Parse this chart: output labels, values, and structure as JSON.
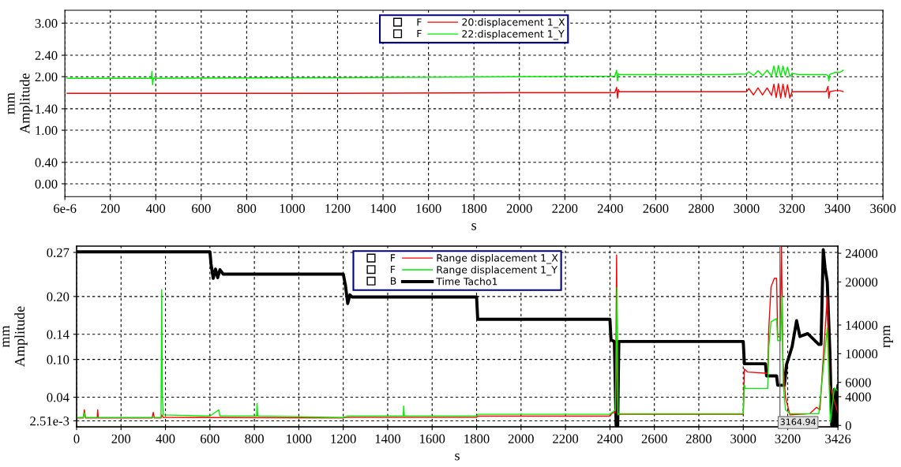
{
  "chart_data": [
    {
      "type": "line",
      "xlabel": "s",
      "ylabel": "mm\nAmplitude",
      "xlim": [
        6e-06,
        3600
      ],
      "ylim": [
        -0.24,
        3.24
      ],
      "xticks": [
        {
          "value": 6e-06,
          "label": "6e-6"
        },
        200,
        400,
        600,
        800,
        1000,
        1200,
        1400,
        1600,
        1800,
        2000,
        2200,
        2400,
        2600,
        2800,
        3000,
        3200,
        3400,
        3600
      ],
      "yticks": [
        {
          "value": 0,
          "label": "0.00"
        },
        {
          "value": 0.4,
          "label": "0.40"
        },
        {
          "value": 1.0,
          "label": "1.00"
        },
        {
          "value": 1.4,
          "label": "1.40"
        },
        {
          "value": 2.0,
          "label": "2.00"
        },
        {
          "value": 2.4,
          "label": "2.40"
        },
        {
          "value": 3.0,
          "label": "3.00"
        }
      ],
      "grid": true,
      "legend": "top",
      "annotations": [
        "F",
        "F"
      ],
      "series": [
        {
          "name": "20:displacement 1_X",
          "color": "#ff0000",
          "x": [
            10,
            380,
            1200,
            2000,
            2420,
            2428,
            2432,
            2436,
            2440,
            2900,
            3000,
            3010,
            3030,
            3050,
            3070,
            3090,
            3110,
            3120,
            3130,
            3140,
            3150,
            3160,
            3170,
            3180,
            3190,
            3200,
            3230,
            3350,
            3358,
            3362,
            3366,
            3390,
            3410,
            3425
          ],
          "values": [
            1.69,
            1.69,
            1.69,
            1.7,
            1.7,
            1.8,
            1.6,
            1.76,
            1.72,
            1.72,
            1.72,
            1.78,
            1.66,
            1.79,
            1.66,
            1.79,
            1.65,
            1.86,
            1.61,
            1.87,
            1.6,
            1.86,
            1.62,
            1.85,
            1.6,
            1.72,
            1.72,
            1.72,
            1.82,
            1.6,
            1.72,
            1.74,
            1.74,
            1.72
          ]
        },
        {
          "name": "22:displacement 1_Y",
          "color": "#00ee00",
          "x": [
            10,
            380,
            383,
            386,
            390,
            1200,
            2000,
            2420,
            2428,
            2432,
            2436,
            2440,
            2900,
            3000,
            3010,
            3030,
            3050,
            3070,
            3090,
            3110,
            3120,
            3130,
            3140,
            3150,
            3160,
            3170,
            3180,
            3190,
            3200,
            3230,
            3350,
            3358,
            3362,
            3366,
            3390,
            3410,
            3425
          ],
          "values": [
            1.97,
            1.97,
            2.1,
            1.85,
            1.97,
            1.98,
            2.0,
            2.01,
            2.12,
            1.92,
            2.06,
            2.04,
            2.04,
            2.05,
            2.09,
            2.02,
            2.11,
            2.02,
            2.12,
            2.01,
            2.2,
            2.0,
            2.21,
            2.0,
            2.2,
            2.02,
            2.18,
            2.0,
            2.06,
            2.04,
            2.04,
            2.02,
            1.92,
            2.04,
            2.08,
            2.08,
            2.12
          ]
        }
      ]
    },
    {
      "type": "line",
      "xlabel": "s",
      "ylabel": "mm\nAmplitude",
      "y2label": "rpm",
      "xlim": [
        0,
        3426
      ],
      "ylim": [
        -0.007,
        0.28
      ],
      "y2lim": [
        -200,
        25000
      ],
      "xticks": [
        0,
        200,
        400,
        600,
        800,
        1000,
        1200,
        1400,
        1600,
        1800,
        2000,
        2200,
        2400,
        2600,
        2800,
        3000,
        3200,
        3426
      ],
      "yticks": [
        {
          "value": 0.00251,
          "label": "2.51e-3"
        },
        0.04,
        {
          "value": 0.1,
          "label": "0.10"
        },
        0.14,
        {
          "value": 0.2,
          "label": "0.20"
        },
        0.27
      ],
      "y2ticks": [
        0,
        4000,
        6000,
        10000,
        14000,
        20000,
        24000
      ],
      "grid": true,
      "legend": "top",
      "annotations": [
        "F",
        "F",
        "B"
      ],
      "ref_lines": [
        {
          "axis": "x",
          "value": 3164.94,
          "label": "3164.94",
          "color": "#707070"
        }
      ],
      "series": [
        {
          "name": "Range displacement 1_X",
          "color": "#ff0000",
          "x": [
            0,
            30,
            35,
            40,
            93,
            95,
            98,
            340,
            345,
            350,
            380,
            383,
            390,
            1200,
            1210,
            1800,
            1805,
            2400,
            2410,
            2425,
            2430,
            2435,
            2440,
            3000,
            3005,
            3020,
            3110,
            3115,
            3125,
            3140,
            3150,
            3155,
            3165,
            3172,
            3178,
            3190,
            3210,
            3300,
            3330,
            3345,
            3378,
            3388,
            3426
          ],
          "values": [
            0.007,
            0.007,
            0.02,
            0.007,
            0.007,
            0.02,
            0.007,
            0.007,
            0.016,
            0.007,
            0.007,
            0.012,
            0.008,
            0.007,
            0.008,
            0.008,
            0.01,
            0.01,
            0.015,
            0.016,
            0.266,
            0.013,
            0.013,
            0.013,
            0.085,
            0.08,
            0.078,
            0.15,
            0.215,
            0.229,
            0.229,
            0.136,
            0.136,
            0.28,
            0.1,
            0.04,
            0.012,
            0.014,
            0.024,
            0.02,
            0.2,
            0.06,
            0.015
          ]
        },
        {
          "name": "Range displacement 1_Y",
          "color": "#00ee00",
          "x": [
            0,
            30,
            35,
            40,
            380,
            383,
            386,
            390,
            600,
            640,
            645,
            810,
            812,
            815,
            1200,
            1220,
            1470,
            1472,
            1475,
            1800,
            1805,
            2400,
            2410,
            2425,
            2432,
            2436,
            2440,
            3000,
            3005,
            3010,
            3110,
            3115,
            3125,
            3150,
            3155,
            3168,
            3175,
            3180,
            3190,
            3210,
            3340,
            3378,
            3392,
            3410,
            3426
          ],
          "values": [
            0.008,
            0.008,
            0.015,
            0.008,
            0.008,
            0.211,
            0.04,
            0.012,
            0.01,
            0.02,
            0.01,
            0.01,
            0.03,
            0.01,
            0.008,
            0.01,
            0.01,
            0.026,
            0.01,
            0.01,
            0.013,
            0.013,
            0.016,
            0.02,
            0.214,
            0.012,
            0.014,
            0.014,
            0.06,
            0.054,
            0.054,
            0.12,
            0.16,
            0.165,
            0.13,
            0.13,
            0.2,
            0.06,
            0.02,
            0.014,
            0.014,
            0.15,
            0.0,
            0.055,
            0.05
          ]
        },
        {
          "name": "Time Tacho1",
          "color": "#000000",
          "axis": "y2",
          "x": [
            0,
            600,
            605,
            615,
            625,
            635,
            645,
            660,
            1200,
            1210,
            1220,
            1230,
            1240,
            1800,
            1805,
            2400,
            2405,
            2420,
            2428,
            2435,
            2440,
            3000,
            3005,
            3100,
            3105,
            3150,
            3155,
            3185,
            3195,
            3205,
            3220,
            3240,
            3255,
            3290,
            3340,
            3350,
            3360,
            3368,
            3378,
            3390,
            3398,
            3405,
            3410,
            3418,
            3426
          ],
          "values": [
            24200,
            24200,
            22500,
            20500,
            21800,
            20600,
            21700,
            21100,
            21100,
            19500,
            17000,
            18200,
            17900,
            17900,
            14800,
            14800,
            11900,
            11700,
            0,
            0,
            11700,
            11700,
            8600,
            8600,
            6900,
            6900,
            5600,
            5600,
            8500,
            9500,
            11000,
            14600,
            12400,
            12800,
            11300,
            11300,
            24500,
            22000,
            20000,
            10000,
            0,
            0,
            5000,
            0,
            5500
          ]
        }
      ]
    }
  ]
}
